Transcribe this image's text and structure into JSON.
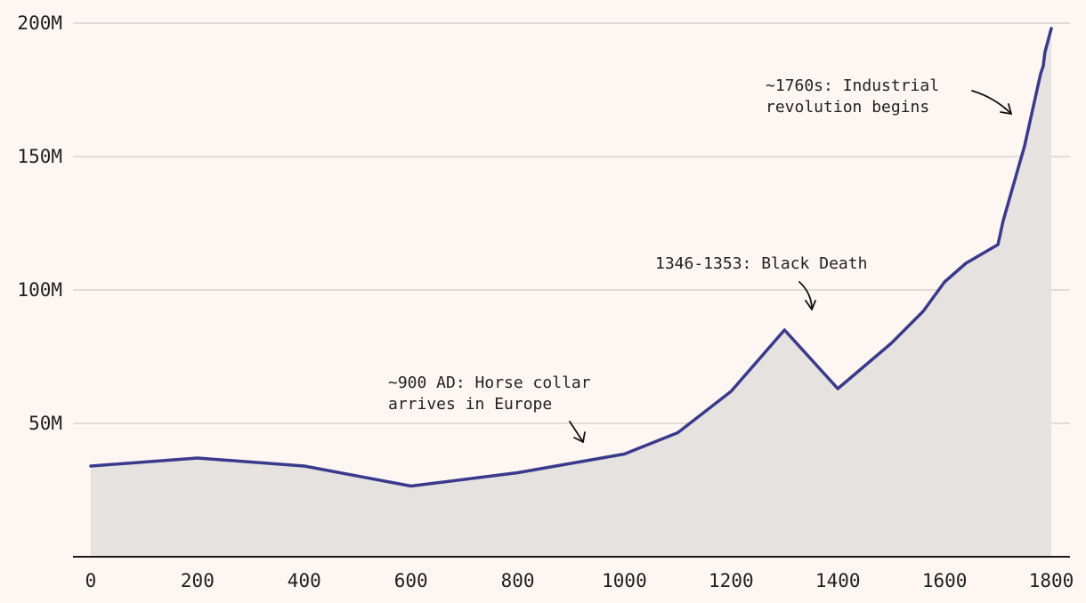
{
  "chart_data": {
    "type": "area",
    "title": "",
    "xlabel": "",
    "ylabel": "",
    "xlim": [
      0,
      1800
    ],
    "ylim": [
      0,
      200
    ],
    "y_unit": "M",
    "grid": "horizontal",
    "colors": {
      "line": "#3a3a8c",
      "area": "#e6e2df",
      "grid": "#d9d2d0",
      "axis": "#1a1a1a",
      "background": "#fdf6f3"
    },
    "x_ticks": [
      {
        "value": 0,
        "label": "0"
      },
      {
        "value": 200,
        "label": "200"
      },
      {
        "value": 400,
        "label": "400"
      },
      {
        "value": 600,
        "label": "600"
      },
      {
        "value": 800,
        "label": "800"
      },
      {
        "value": 1000,
        "label": "1000"
      },
      {
        "value": 1200,
        "label": "1200"
      },
      {
        "value": 1400,
        "label": "1400"
      },
      {
        "value": 1600,
        "label": "1600"
      },
      {
        "value": 1800,
        "label": "1800"
      }
    ],
    "y_ticks": [
      {
        "value": 50,
        "label": "50M"
      },
      {
        "value": 100,
        "label": "100M"
      },
      {
        "value": 150,
        "label": "150M"
      },
      {
        "value": 200,
        "label": "200M"
      }
    ],
    "series": [
      {
        "points": [
          [
            0,
            34
          ],
          [
            200,
            37
          ],
          [
            400,
            34
          ],
          [
            600,
            26.5
          ],
          [
            700,
            29
          ],
          [
            800,
            31.5
          ],
          [
            900,
            35
          ],
          [
            1000,
            38.5
          ],
          [
            1100,
            46.5
          ],
          [
            1200,
            62
          ],
          [
            1300,
            85
          ],
          [
            1400,
            63
          ],
          [
            1500,
            80
          ],
          [
            1560,
            92
          ],
          [
            1600,
            103
          ],
          [
            1640,
            110
          ],
          [
            1700,
            117
          ],
          [
            1710,
            126
          ],
          [
            1750,
            154
          ],
          [
            1780,
            181
          ],
          [
            1785,
            184
          ],
          [
            1788,
            189
          ],
          [
            1800,
            198
          ]
        ]
      }
    ],
    "annotations": [
      {
        "lines": [
          "~900 AD: Horse collar",
          "arrives in Europe"
        ],
        "target": [
          935,
          42
        ]
      },
      {
        "lines": [
          "1346-1353: Black Death"
        ],
        "target": [
          1355,
          92
        ]
      },
      {
        "lines": [
          "~1760s: Industrial",
          "revolution begins"
        ],
        "target": [
          1760,
          166
        ]
      }
    ]
  }
}
